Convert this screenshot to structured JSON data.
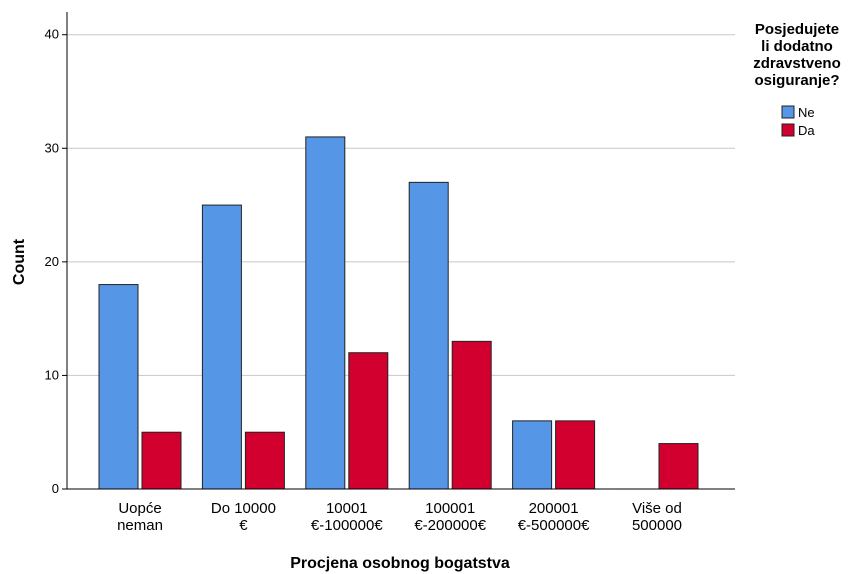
{
  "chart_data": {
    "type": "bar",
    "categories": [
      [
        "Uopće",
        "neman"
      ],
      [
        "Do 10000",
        "€"
      ],
      [
        "10001",
        "€-100000€"
      ],
      [
        "100001",
        "€-200000€"
      ],
      [
        "200001",
        "€-500000€"
      ],
      [
        "Više od",
        "500000"
      ]
    ],
    "series": [
      {
        "name": "Ne",
        "color": "#5596E6",
        "values": [
          18,
          25,
          31,
          27,
          6,
          0
        ]
      },
      {
        "name": "Da",
        "color": "#D2002F",
        "values": [
          5,
          5,
          12,
          13,
          6,
          4
        ]
      }
    ],
    "xlabel": "Procjena osobnog bogatstva",
    "ylabel": "Count",
    "ylim": [
      0,
      42
    ],
    "yticks": [
      0,
      10,
      20,
      30,
      40
    ],
    "grid": true,
    "legend": {
      "title": [
        "Posjedujete",
        "li dodatno",
        "zdravstveno",
        "osiguranje?"
      ],
      "placement": "top-right"
    }
  }
}
